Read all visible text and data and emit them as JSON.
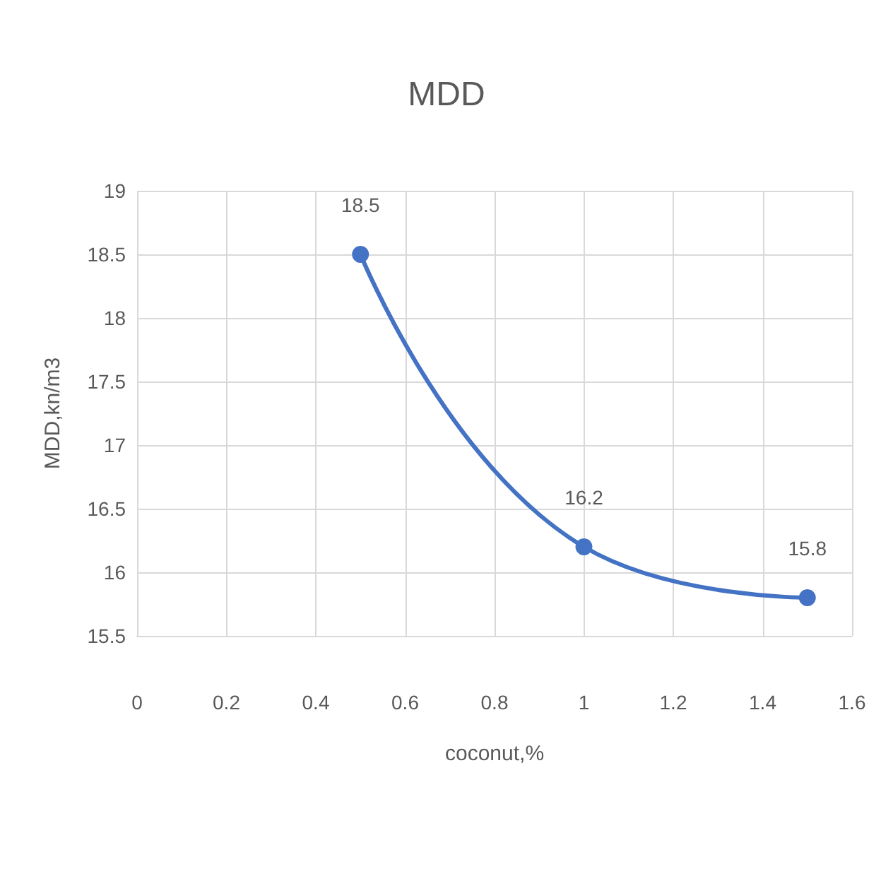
{
  "chart_data": {
    "type": "line",
    "title": "MDD",
    "xlabel": "coconut,%",
    "ylabel": "MDD,kn/m3",
    "x": [
      0.5,
      1,
      1.5
    ],
    "series": [
      {
        "color": "#4472c4",
        "values": [
          18.5,
          16.2,
          15.8
        ]
      }
    ],
    "xlim": [
      0,
      1.6
    ],
    "xticks": [
      0,
      0.2,
      0.4,
      0.6,
      0.8,
      1,
      1.2,
      1.4,
      1.6
    ],
    "ylim": [
      15.5,
      19
    ],
    "yticks": [
      15.5,
      16,
      16.5,
      17,
      17.5,
      18,
      18.5,
      19
    ],
    "grid": true,
    "marker": "circle",
    "line_style": "solid",
    "data_labels": true
  }
}
